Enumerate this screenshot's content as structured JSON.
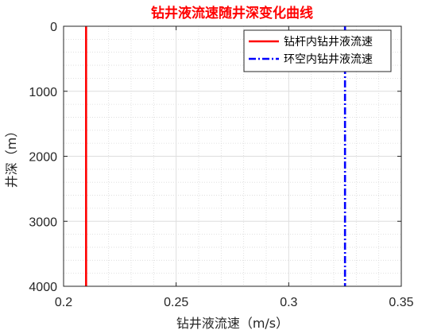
{
  "chart_data": {
    "type": "line",
    "title": "钻井液流速随井深变化曲线",
    "xlabel": "钻井液流速（m/s）",
    "ylabel": "井深（m）",
    "xlim": [
      0.2,
      0.35
    ],
    "ylim": [
      0,
      4000
    ],
    "y_reversed": true,
    "grid": true,
    "minor_grid": true,
    "legend_position": "top-right",
    "x_ticks": [
      0.2,
      0.25,
      0.3,
      0.35
    ],
    "x_tick_labels": [
      "0.2",
      "0.25",
      "0.3",
      "0.35"
    ],
    "y_ticks": [
      0,
      1000,
      2000,
      3000,
      4000
    ],
    "y_tick_labels": [
      "0",
      "1000",
      "2000",
      "3000",
      "4000"
    ],
    "series": [
      {
        "name": "钻杆内钻井液流速",
        "color": "#ff0000",
        "line_style": "solid",
        "x": [
          0.21,
          0.21
        ],
        "y": [
          0,
          4000
        ]
      },
      {
        "name": "环空内钻井液流速",
        "color": "#0000ff",
        "line_style": "dash-dot",
        "x": [
          0.325,
          0.325
        ],
        "y": [
          0,
          4000
        ]
      }
    ]
  }
}
